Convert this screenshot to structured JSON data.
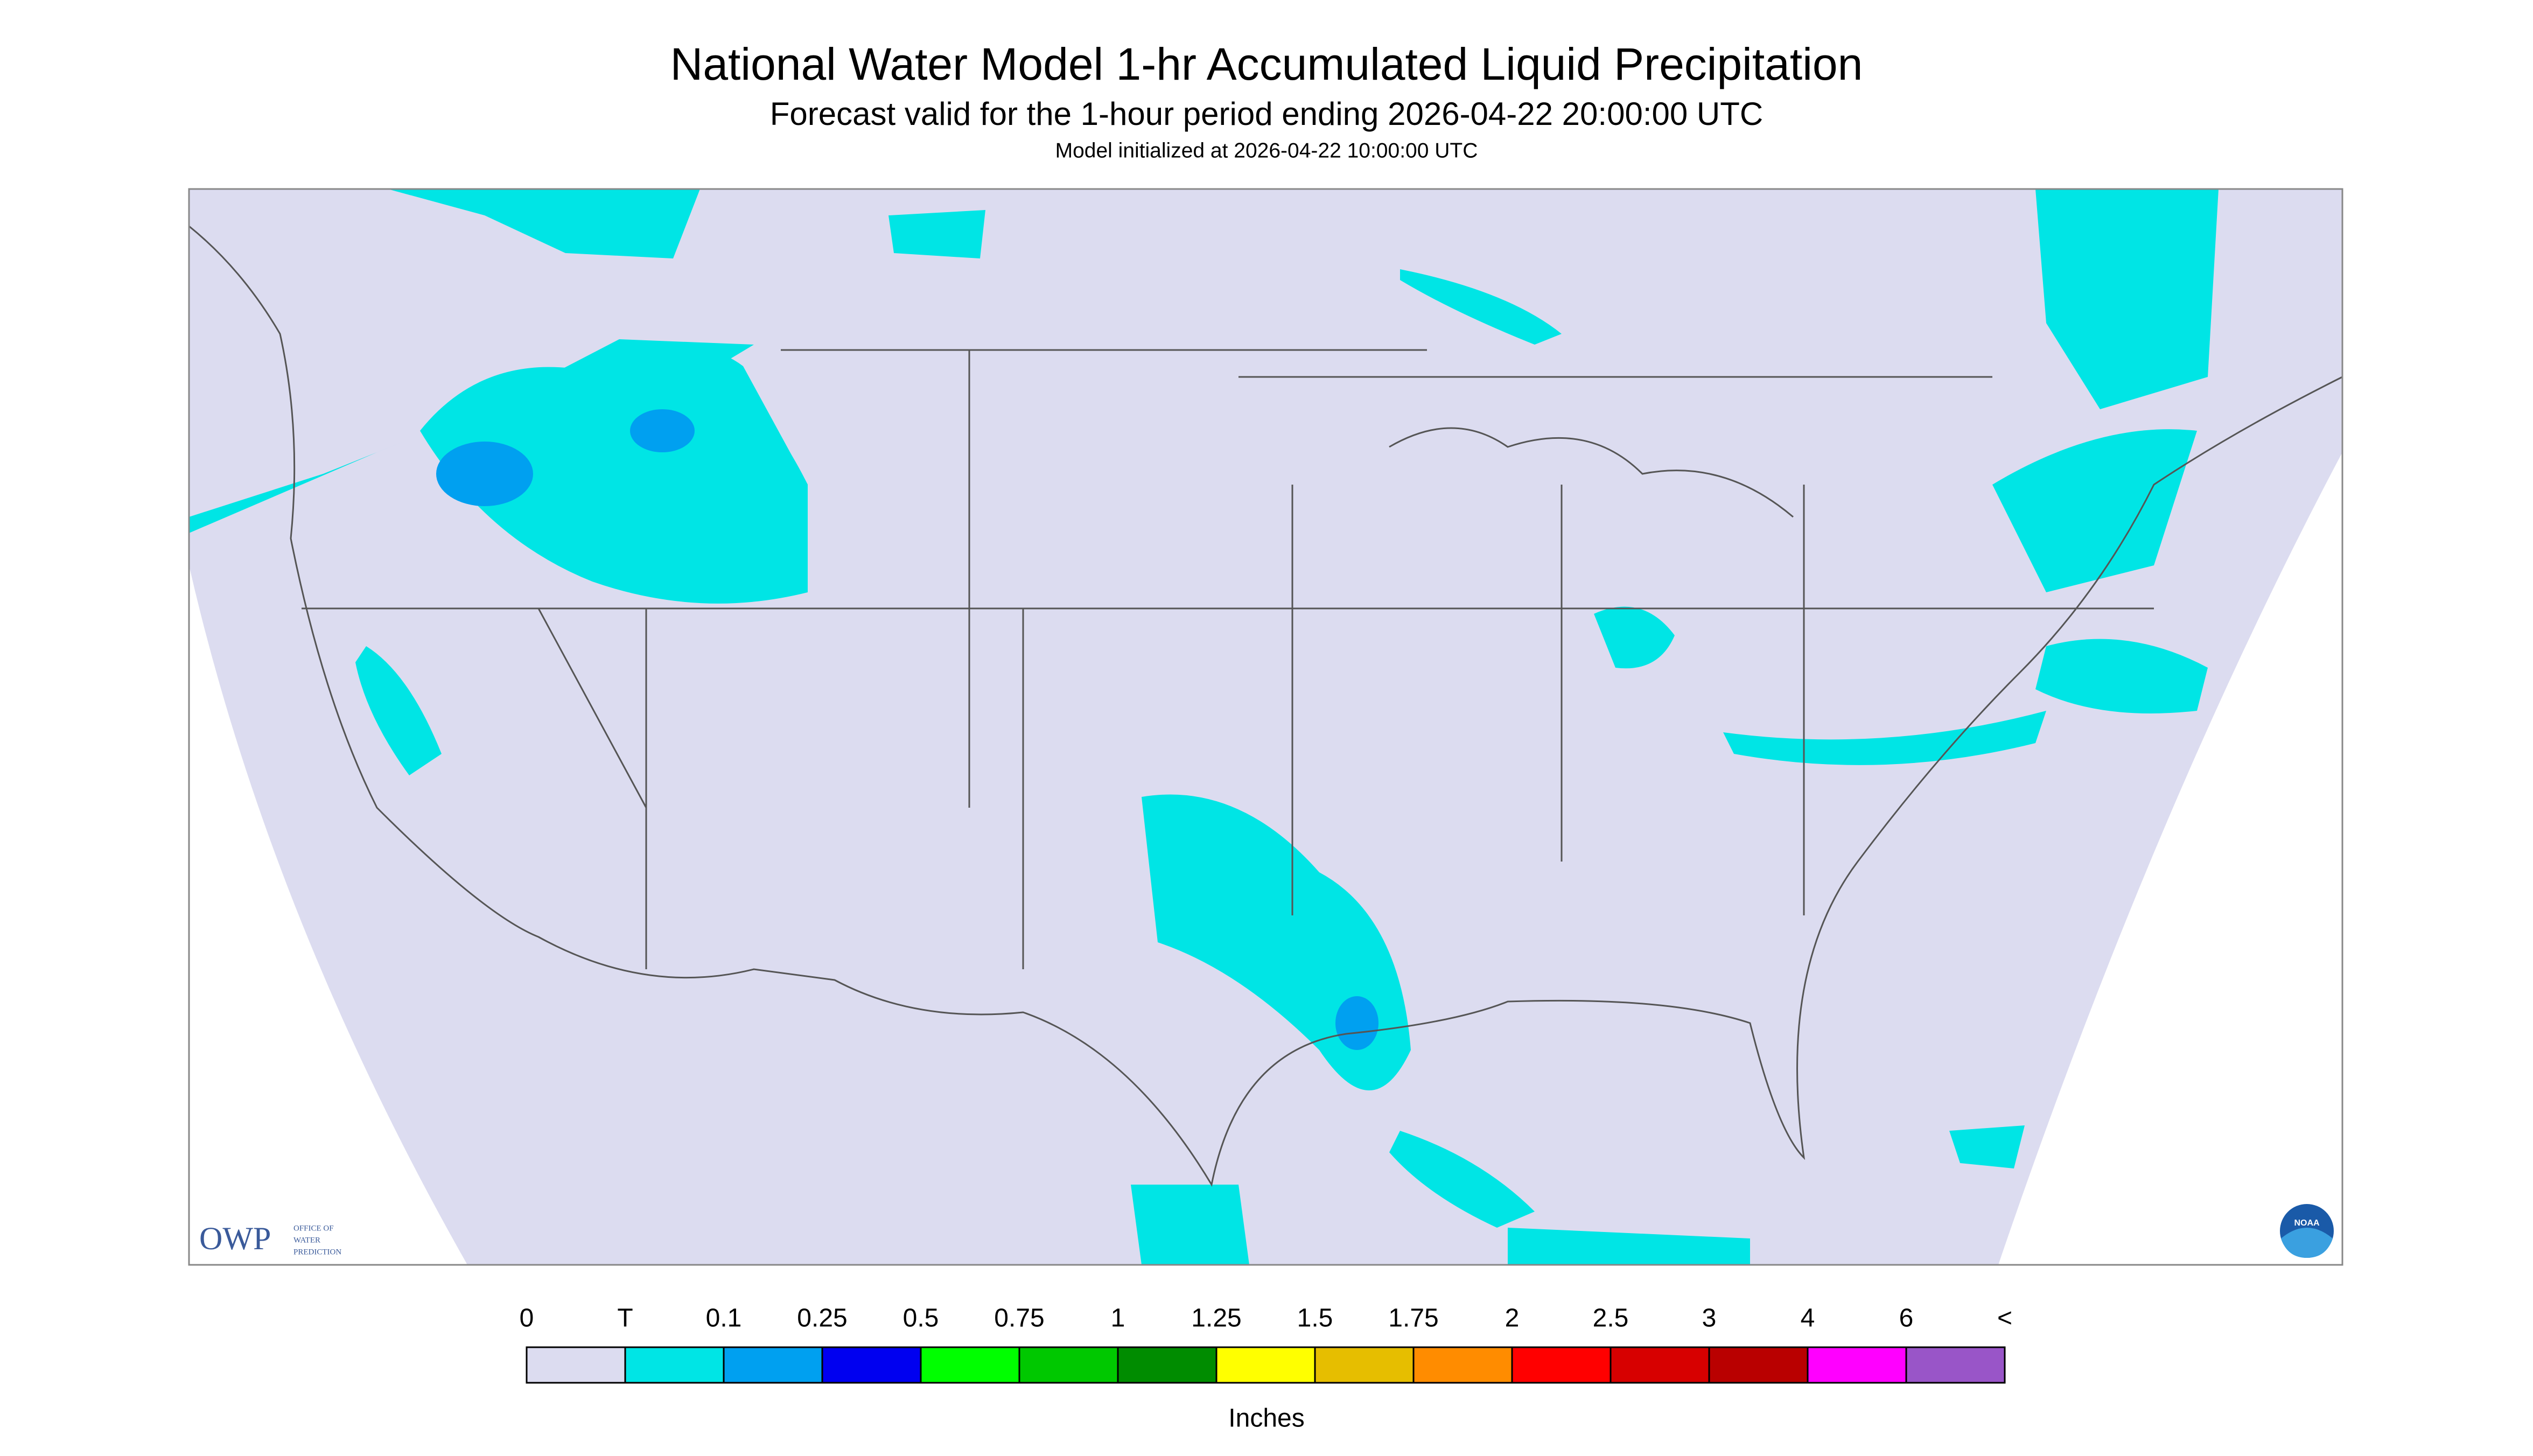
{
  "header": {
    "title": "National Water Model 1-hr Accumulated Liquid Precipitation",
    "subtitle": "Forecast valid for the 1-hour period ending 2026-04-22 20:00:00 UTC",
    "initialized": "Model initialized at 2026-04-22 10:00:00 UTC"
  },
  "logos": {
    "owp": "OWP",
    "owp_name": [
      "OFFICE OF",
      "WATER",
      "PREDICTION"
    ],
    "noaa": "NOAA"
  },
  "legend": {
    "labels": [
      "0",
      "T",
      "0.1",
      "0.25",
      "0.5",
      "0.75",
      "1",
      "1.25",
      "1.5",
      "1.75",
      "2",
      "2.5",
      "3",
      "4",
      "6",
      "<"
    ],
    "colors": [
      "#dcdcf0",
      "#00e5e5",
      "#00a0f0",
      "#0000f0",
      "#00ff00",
      "#00c800",
      "#008c00",
      "#ffff00",
      "#e6be00",
      "#ff8c00",
      "#ff0000",
      "#d70000",
      "#b90000",
      "#ff00ff",
      "#9955c8"
    ],
    "unit": "Inches"
  }
}
